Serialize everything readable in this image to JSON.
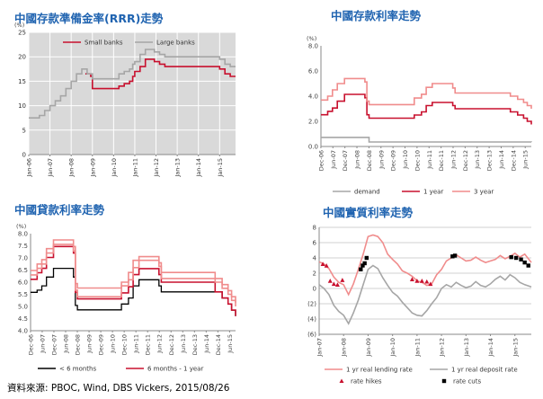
{
  "source_note": "資料來源: PBOC, Wind, DBS Vickers, 2015/08/26",
  "colors": {
    "title": "#1f63b0",
    "red": "#c8102e",
    "pink": "#f08c8c",
    "gray": "#a6a6a6",
    "black": "#000000",
    "plot_bg": "#d9d9d9"
  },
  "chart_data": [
    {
      "id": "rrr",
      "type": "line",
      "title": "中國存款準備金率(RRR)走勢",
      "unit_label": "(%)",
      "ylim": [
        0,
        25
      ],
      "yticks": [
        0,
        5,
        10,
        15,
        20,
        25
      ],
      "xlim": [
        2006.0,
        2015.75
      ],
      "xticks": [
        "Jan-06",
        "Jan-07",
        "Jan-08",
        "Jan-09",
        "Jan-10",
        "Jan-11",
        "Jan-12",
        "Jan-13",
        "Jan-14",
        "Jan-15"
      ],
      "grid": true,
      "legend": "top-center",
      "series": [
        {
          "name": "Small banks",
          "color": "red",
          "step": true,
          "x": [
            2006.0,
            2008.67,
            2008.92,
            2009.0,
            2010.0,
            2010.25,
            2010.5,
            2010.75,
            2010.9,
            2011.0,
            2011.25,
            2011.5,
            2011.92,
            2012.17,
            2012.42,
            2014.33,
            2015.0,
            2015.25,
            2015.5,
            2015.75
          ],
          "y": [
            null,
            16.5,
            16.0,
            13.5,
            13.5,
            14.0,
            14.5,
            15.0,
            16.0,
            17.0,
            18.0,
            19.5,
            19.0,
            18.5,
            18.0,
            18.0,
            17.5,
            16.5,
            16.0,
            16.0
          ]
        },
        {
          "name": "Large banks",
          "color": "gray",
          "step": true,
          "x": [
            2006.0,
            2006.5,
            2006.75,
            2007.0,
            2007.25,
            2007.5,
            2007.75,
            2008.0,
            2008.25,
            2008.5,
            2008.75,
            2009.0,
            2010.0,
            2010.25,
            2010.5,
            2010.75,
            2010.9,
            2011.0,
            2011.25,
            2011.5,
            2011.92,
            2012.17,
            2012.42,
            2015.0,
            2015.25,
            2015.5,
            2015.75
          ],
          "y": [
            7.5,
            8.0,
            9.0,
            10.0,
            11.0,
            12.0,
            13.5,
            15.0,
            16.5,
            17.5,
            16.5,
            15.5,
            15.5,
            16.5,
            17.0,
            17.5,
            18.5,
            19.0,
            20.5,
            21.5,
            21.0,
            20.5,
            20.0,
            19.5,
            18.5,
            18.0,
            18.0
          ]
        }
      ]
    },
    {
      "id": "deposit",
      "type": "line",
      "title": "中國存款利率走勢",
      "unit_label": "(%)",
      "ylim": [
        0.0,
        8.0
      ],
      "yticks": [
        "0.0",
        "2.0",
        "4.0",
        "6.0",
        "8.0"
      ],
      "xlim": [
        2006.92,
        2015.67
      ],
      "xticks": [
        "Dec-06",
        "Jun-07",
        "Dec-07",
        "Jun-08",
        "Dec-08",
        "Jun-09",
        "Dec-09",
        "Jun-10",
        "Dec-10",
        "Jun-11",
        "Dec-11",
        "Jun-12",
        "Dec-12",
        "Jun-13",
        "Dec-13",
        "Jun-14",
        "Dec-14",
        "Jun-15"
      ],
      "grid": false,
      "legend": "bottom",
      "series": [
        {
          "name": "demand",
          "color": "gray",
          "step": true,
          "x": [
            2006.92,
            2008.83,
            2008.92,
            2015.67
          ],
          "y": [
            0.72,
            0.72,
            0.36,
            0.35
          ]
        },
        {
          "name": "1 year",
          "color": "red",
          "step": true,
          "x": [
            2006.92,
            2007.2,
            2007.4,
            2007.6,
            2007.9,
            2008.75,
            2008.83,
            2008.92,
            2010.8,
            2011.1,
            2011.3,
            2011.55,
            2012.4,
            2012.5,
            2014.8,
            2015.1,
            2015.35,
            2015.5,
            2015.67
          ],
          "y": [
            2.52,
            2.79,
            3.06,
            3.6,
            4.14,
            3.87,
            2.52,
            2.25,
            2.5,
            2.75,
            3.25,
            3.5,
            3.25,
            3.0,
            2.75,
            2.5,
            2.25,
            2.0,
            1.75
          ]
        },
        {
          "name": "3 year",
          "color": "pink",
          "step": true,
          "x": [
            2006.92,
            2007.2,
            2007.4,
            2007.6,
            2007.9,
            2008.75,
            2008.83,
            2008.92,
            2010.8,
            2011.1,
            2011.3,
            2011.55,
            2012.4,
            2012.5,
            2014.8,
            2015.1,
            2015.35,
            2015.5,
            2015.67
          ],
          "y": [
            3.69,
            4.0,
            4.5,
            5.0,
            5.4,
            5.13,
            3.6,
            3.33,
            3.85,
            4.15,
            4.7,
            5.0,
            4.65,
            4.25,
            4.0,
            3.75,
            3.5,
            3.25,
            3.0
          ]
        }
      ]
    },
    {
      "id": "lending",
      "type": "line",
      "title": "中國貸款利率走勢",
      "unit_label": "(%)",
      "ylim": [
        4.0,
        8.0
      ],
      "yticks": [
        "4.0",
        "4.5",
        "5.0",
        "5.5",
        "6.0",
        "6.5",
        "7.0",
        "7.5",
        "8.0"
      ],
      "xlim": [
        2006.92,
        2015.67
      ],
      "xticks": [
        "Dec-06",
        "Jun-07",
        "Dec-07",
        "Jun-08",
        "Dec-08",
        "Jun-09",
        "Dec-09",
        "Jun-10",
        "Dec-10",
        "Jun-11",
        "Dec-11",
        "Jun-12",
        "Dec-12",
        "Jun-13",
        "Dec-13",
        "Jun-14",
        "Dec-14",
        "Jun-15"
      ],
      "grid": false,
      "legend": "bottom",
      "series": [
        {
          "name": "< 6 months",
          "color": "black",
          "step": true,
          "x": [
            2006.92,
            2007.2,
            2007.4,
            2007.6,
            2007.9,
            2008.75,
            2008.83,
            2008.92,
            2010.8,
            2011.1,
            2011.3,
            2011.55,
            2012.4,
            2012.5,
            2014.8,
            2015.1,
            2015.35,
            2015.5,
            2015.67
          ],
          "y": [
            5.58,
            5.67,
            5.85,
            6.21,
            6.57,
            6.21,
            5.04,
            4.86,
            5.1,
            5.35,
            5.85,
            6.1,
            5.85,
            5.6,
            5.6,
            5.35,
            5.1,
            4.85,
            4.6
          ]
        },
        {
          "name": "6 months - 1 year",
          "color": "red",
          "step": true,
          "x": [
            2006.92,
            2007.2,
            2007.4,
            2007.6,
            2007.9,
            2008.75,
            2008.83,
            2008.92,
            2010.8,
            2011.1,
            2011.3,
            2011.55,
            2012.4,
            2012.5,
            2014.8,
            2015.1,
            2015.35,
            2015.5,
            2015.67
          ],
          "y": [
            6.12,
            6.39,
            6.57,
            7.02,
            7.47,
            7.2,
            5.58,
            5.31,
            5.56,
            5.81,
            6.31,
            6.56,
            6.31,
            6.0,
            5.6,
            5.35,
            5.1,
            4.85,
            4.6
          ]
        },
        {
          "name": "",
          "color": "pink",
          "step": true,
          "x": [
            2006.92,
            2007.2,
            2007.4,
            2007.6,
            2007.9,
            2008.75,
            2008.83,
            2008.92,
            2010.8,
            2011.1,
            2011.3,
            2011.55,
            2012.4,
            2012.5,
            2014.8,
            2015.1,
            2015.35,
            2015.5,
            2015.67
          ],
          "y": [
            6.3,
            6.57,
            6.75,
            7.2,
            7.56,
            7.29,
            5.67,
            5.4,
            5.85,
            6.1,
            6.6,
            6.9,
            6.65,
            6.15,
            6.0,
            5.75,
            5.5,
            5.25,
            5.0
          ]
        },
        {
          "name": "",
          "color": "pink",
          "step": true,
          "x": [
            2006.92,
            2007.2,
            2007.4,
            2007.6,
            2007.9,
            2008.75,
            2008.83,
            2008.92,
            2010.8,
            2011.1,
            2011.3,
            2011.55,
            2012.4,
            2012.5,
            2014.8,
            2015.1,
            2015.35,
            2015.5,
            2015.67
          ],
          "y": [
            6.48,
            6.75,
            6.93,
            7.38,
            7.74,
            7.47,
            5.94,
            5.76,
            6.0,
            6.4,
            6.9,
            7.05,
            6.8,
            6.4,
            6.15,
            5.9,
            5.65,
            5.4,
            5.15
          ]
        }
      ]
    },
    {
      "id": "real",
      "type": "line",
      "title": "中國實質利率走勢",
      "ylim": [
        -6,
        8
      ],
      "yticks": [
        "(6)",
        "(4)",
        "(2)",
        "0",
        "2",
        "4",
        "6",
        "8"
      ],
      "ytick_values": [
        -6,
        -4,
        -2,
        0,
        2,
        4,
        6,
        8
      ],
      "xlim": [
        2007.0,
        2015.67
      ],
      "xticks": [
        "Jan-07",
        "Jan-08",
        "Jan-09",
        "Jan-10",
        "Jan-11",
        "Jan-12",
        "Jan-13",
        "Jan-14",
        "Jan-15"
      ],
      "xtick_values": [
        2007.0,
        2008.0,
        2009.0,
        2010.0,
        2011.0,
        2012.0,
        2013.0,
        2014.0,
        2015.0
      ],
      "grid": true,
      "legend": "bottom",
      "series": [
        {
          "name": "1 yr real lending rate",
          "color": "pink",
          "step": false,
          "x": [
            2007.0,
            2007.2,
            2007.4,
            2007.6,
            2007.8,
            2008.0,
            2008.2,
            2008.4,
            2008.6,
            2008.8,
            2009.0,
            2009.2,
            2009.4,
            2009.6,
            2009.8,
            2010.0,
            2010.2,
            2010.4,
            2010.6,
            2010.8,
            2011.0,
            2011.2,
            2011.4,
            2011.6,
            2011.8,
            2012.0,
            2012.2,
            2012.4,
            2012.6,
            2012.8,
            2013.0,
            2013.2,
            2013.4,
            2013.6,
            2013.8,
            2014.0,
            2014.2,
            2014.4,
            2014.6,
            2014.8,
            2015.0,
            2015.2,
            2015.4,
            2015.67
          ],
          "y": [
            3.5,
            3.2,
            2.6,
            1.5,
            0.8,
            0.5,
            -0.8,
            0.6,
            2.5,
            4.5,
            6.8,
            7.0,
            6.8,
            6.0,
            4.5,
            3.8,
            3.2,
            2.3,
            2.0,
            1.6,
            1.0,
            0.8,
            0.4,
            0.6,
            1.8,
            2.5,
            3.6,
            4.0,
            4.4,
            4.0,
            3.6,
            3.7,
            4.1,
            3.7,
            3.4,
            3.6,
            3.8,
            4.3,
            3.9,
            4.2,
            4.6,
            4.1,
            4.5,
            3.4
          ]
        },
        {
          "name": "1 yr real deposit rate",
          "color": "gray",
          "step": false,
          "x": [
            2007.0,
            2007.2,
            2007.4,
            2007.6,
            2007.8,
            2008.0,
            2008.2,
            2008.4,
            2008.6,
            2008.8,
            2009.0,
            2009.2,
            2009.4,
            2009.6,
            2009.8,
            2010.0,
            2010.2,
            2010.4,
            2010.6,
            2010.8,
            2011.0,
            2011.2,
            2011.4,
            2011.6,
            2011.8,
            2012.0,
            2012.2,
            2012.4,
            2012.6,
            2012.8,
            2013.0,
            2013.2,
            2013.4,
            2013.6,
            2013.8,
            2014.0,
            2014.2,
            2014.4,
            2014.6,
            2014.8,
            2015.0,
            2015.2,
            2015.4,
            2015.67
          ],
          "y": [
            0.5,
            0.0,
            -0.8,
            -2.2,
            -3.0,
            -3.5,
            -4.6,
            -3.2,
            -1.5,
            0.5,
            2.5,
            3.0,
            2.6,
            1.4,
            0.4,
            -0.5,
            -1.0,
            -1.8,
            -2.5,
            -3.2,
            -3.5,
            -3.6,
            -2.9,
            -2.0,
            -1.2,
            0.0,
            0.5,
            0.2,
            0.8,
            0.4,
            0.1,
            0.3,
            0.9,
            0.4,
            0.2,
            0.6,
            1.2,
            1.6,
            1.1,
            1.8,
            1.4,
            0.8,
            0.5,
            0.2
          ]
        },
        {
          "name": "rate hikes",
          "color": "red",
          "marker": "triangle",
          "x": [
            2007.15,
            2007.3,
            2007.45,
            2007.6,
            2007.75,
            2007.95,
            2010.8,
            2011.0,
            2011.2,
            2011.4,
            2011.55
          ],
          "y": [
            3.2,
            3.0,
            1.0,
            0.6,
            0.5,
            1.1,
            1.2,
            1.0,
            1.0,
            0.9,
            0.6
          ]
        },
        {
          "name": "rate cuts",
          "color": "black",
          "marker": "square",
          "x": [
            2008.7,
            2008.78,
            2008.86,
            2008.94,
            2012.45,
            2012.55,
            2014.85,
            2015.05,
            2015.25,
            2015.4,
            2015.55
          ],
          "y": [
            2.5,
            3.0,
            3.3,
            4.0,
            4.2,
            4.3,
            4.1,
            4.0,
            3.8,
            3.4,
            3.0
          ]
        }
      ]
    }
  ]
}
